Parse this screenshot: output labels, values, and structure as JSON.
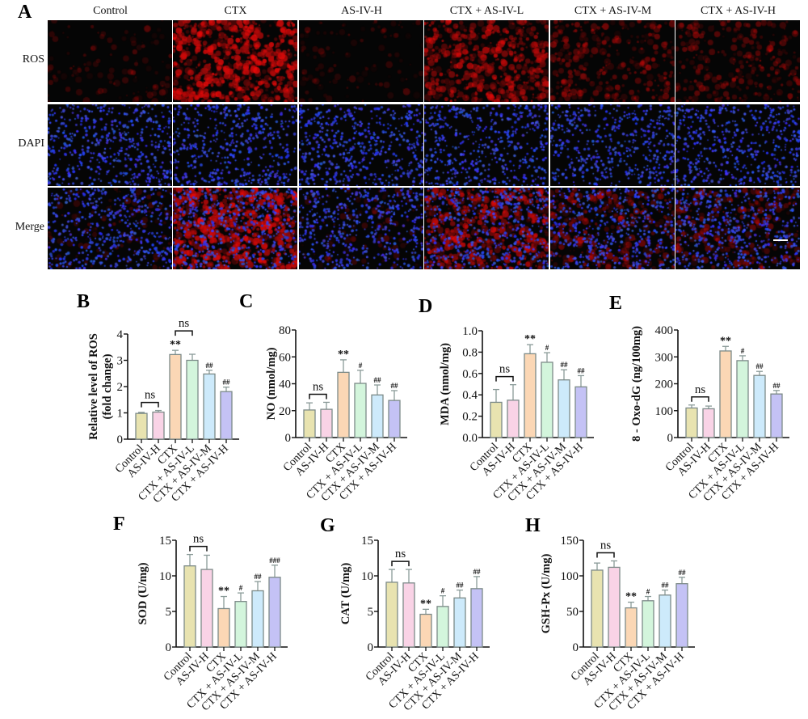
{
  "figure": {
    "panel_A": {
      "letter": "A",
      "columns": [
        "Control",
        "CTX",
        "AS-IV-H",
        "CTX + AS-IV-L",
        "CTX + AS-IV-M",
        "CTX + AS-IV-H"
      ],
      "rows": [
        "ROS",
        "DAPI",
        "Merge"
      ],
      "ros_intensity": [
        0.08,
        0.85,
        0.07,
        0.65,
        0.35,
        0.3
      ]
    }
  },
  "colors": {
    "bars": [
      "#e8e3b0",
      "#f9d3e6",
      "#fbd7b5",
      "#d3f5dc",
      "#cdeafb",
      "#c4c2f5"
    ],
    "bar_edge": "#7c8a88",
    "errorbar": "#8a9a98",
    "axis": "#111111"
  },
  "chart_data": [
    {
      "panel": "B",
      "type": "bar",
      "categories": [
        "Control",
        "AS-IV-H",
        "CTX",
        "CTX + AS-IV-L",
        "CTX + AS-IV-M",
        "CTX + AS-IV-H"
      ],
      "values": [
        0.98,
        1.03,
        3.22,
        3.0,
        2.48,
        1.81
      ],
      "errors": [
        0.04,
        0.06,
        0.16,
        0.23,
        0.14,
        0.17
      ],
      "annotations": [
        "",
        "",
        "**",
        "",
        "##",
        "##"
      ],
      "brackets": [
        {
          "from": 0,
          "to": 1,
          "label": "ns"
        },
        {
          "from": 2,
          "to": 3,
          "label": "ns"
        }
      ],
      "ylabel": "Relative level of ROS\n(fold change)",
      "ylim": [
        0,
        4
      ],
      "yticks": [
        "0",
        "1",
        "2",
        "3",
        "4"
      ]
    },
    {
      "panel": "C",
      "type": "bar",
      "categories": [
        "Control",
        "AS-IV-H",
        "CTX",
        "CTX + AS-IV-L",
        "CTX + AS-IV-M",
        "CTX + AS-IV-H"
      ],
      "values": [
        20.5,
        21,
        48.5,
        40.3,
        31.7,
        27.6
      ],
      "errors": [
        5.3,
        5.2,
        9.3,
        9.7,
        7.4,
        7.3
      ],
      "annotations": [
        "",
        "",
        "**",
        "#",
        "##",
        "##"
      ],
      "brackets": [
        {
          "from": 0,
          "to": 1,
          "label": "ns"
        }
      ],
      "ylabel": "NO (nmol/mg)",
      "ylim": [
        0,
        80
      ],
      "yticks": [
        "0",
        "20",
        "40",
        "60",
        "80"
      ]
    },
    {
      "panel": "D",
      "type": "bar",
      "categories": [
        "Control",
        "AS-IV-H",
        "CTX",
        "CTX + AS-IV-L",
        "CTX + AS-IV-M",
        "CTX + AS-IV-H"
      ],
      "values": [
        0.33,
        0.35,
        0.785,
        0.705,
        0.54,
        0.475
      ],
      "errors": [
        0.12,
        0.145,
        0.085,
        0.09,
        0.095,
        0.105
      ],
      "annotations": [
        "",
        "",
        "**",
        "#",
        "##",
        "##"
      ],
      "brackets": [
        {
          "from": 0,
          "to": 1,
          "label": "ns"
        }
      ],
      "ylabel": "MDA (nmol/mg)",
      "ylim": [
        0,
        1.0
      ],
      "yticks": [
        "0.0",
        "0.2",
        "0.4",
        "0.6",
        "0.8",
        "1.0"
      ]
    },
    {
      "panel": "E",
      "type": "bar",
      "categories": [
        "Control",
        "AS-IV-H",
        "CTX",
        "CTX + AS-IV-L",
        "CTX + AS-IV-M",
        "CTX + AS-IV-H"
      ],
      "values": [
        110,
        107,
        322,
        286,
        231,
        162
      ],
      "errors": [
        11,
        10,
        17,
        18,
        15,
        13
      ],
      "annotations": [
        "",
        "",
        "**",
        "#",
        "##",
        "##"
      ],
      "brackets": [
        {
          "from": 0,
          "to": 1,
          "label": "ns"
        }
      ],
      "ylabel": "8 - Oxo-dG (ng/100mg)",
      "ylim": [
        0,
        400
      ],
      "yticks": [
        "0",
        "100",
        "200",
        "300",
        "400"
      ]
    },
    {
      "panel": "F",
      "type": "bar",
      "categories": [
        "Control",
        "AS-IV-H",
        "CTX",
        "CTX + AS-IV-L",
        "CTX + AS-IV-M",
        "CTX + AS-IV-H"
      ],
      "values": [
        11.4,
        10.9,
        5.4,
        6.4,
        7.9,
        9.8
      ],
      "errors": [
        1.6,
        2.0,
        1.7,
        1.2,
        1.3,
        1.7
      ],
      "annotations": [
        "",
        "",
        "**",
        "#",
        "##",
        "###"
      ],
      "brackets": [
        {
          "from": 0,
          "to": 1,
          "label": "ns"
        }
      ],
      "ylabel": "SOD (U/mg)",
      "ylim": [
        0,
        15
      ],
      "yticks": [
        "0",
        "5",
        "10",
        "15"
      ]
    },
    {
      "panel": "G",
      "type": "bar",
      "categories": [
        "Control",
        "AS-IV-H",
        "CTX",
        "CTX + AS-IV-L",
        "CTX + AS-IV-M",
        "CTX + AS-IV-H"
      ],
      "values": [
        9.1,
        9.0,
        4.6,
        5.7,
        6.9,
        8.2
      ],
      "errors": [
        1.8,
        1.9,
        0.7,
        1.5,
        1.1,
        1.7
      ],
      "annotations": [
        "",
        "",
        "**",
        "#",
        "##",
        "##"
      ],
      "brackets": [
        {
          "from": 0,
          "to": 1,
          "label": "ns"
        }
      ],
      "ylabel": "CAT (U/mg)",
      "ylim": [
        0,
        15
      ],
      "yticks": [
        "0",
        "5",
        "10",
        "15"
      ]
    },
    {
      "panel": "H",
      "type": "bar",
      "categories": [
        "Control",
        "AS-IV-H",
        "CTX",
        "CTX + AS-IV-L",
        "CTX + AS-IV-M",
        "CTX + AS-IV-H"
      ],
      "values": [
        108,
        112,
        55,
        65,
        73,
        89
      ],
      "errors": [
        10,
        9,
        8,
        6,
        7,
        9
      ],
      "annotations": [
        "",
        "",
        "**",
        "#",
        "##",
        "##"
      ],
      "brackets": [
        {
          "from": 0,
          "to": 1,
          "label": "ns"
        }
      ],
      "ylabel": "GSH-Px (U/mg)",
      "ylim": [
        0,
        150
      ],
      "yticks": [
        "0",
        "50",
        "100",
        "150"
      ]
    }
  ]
}
